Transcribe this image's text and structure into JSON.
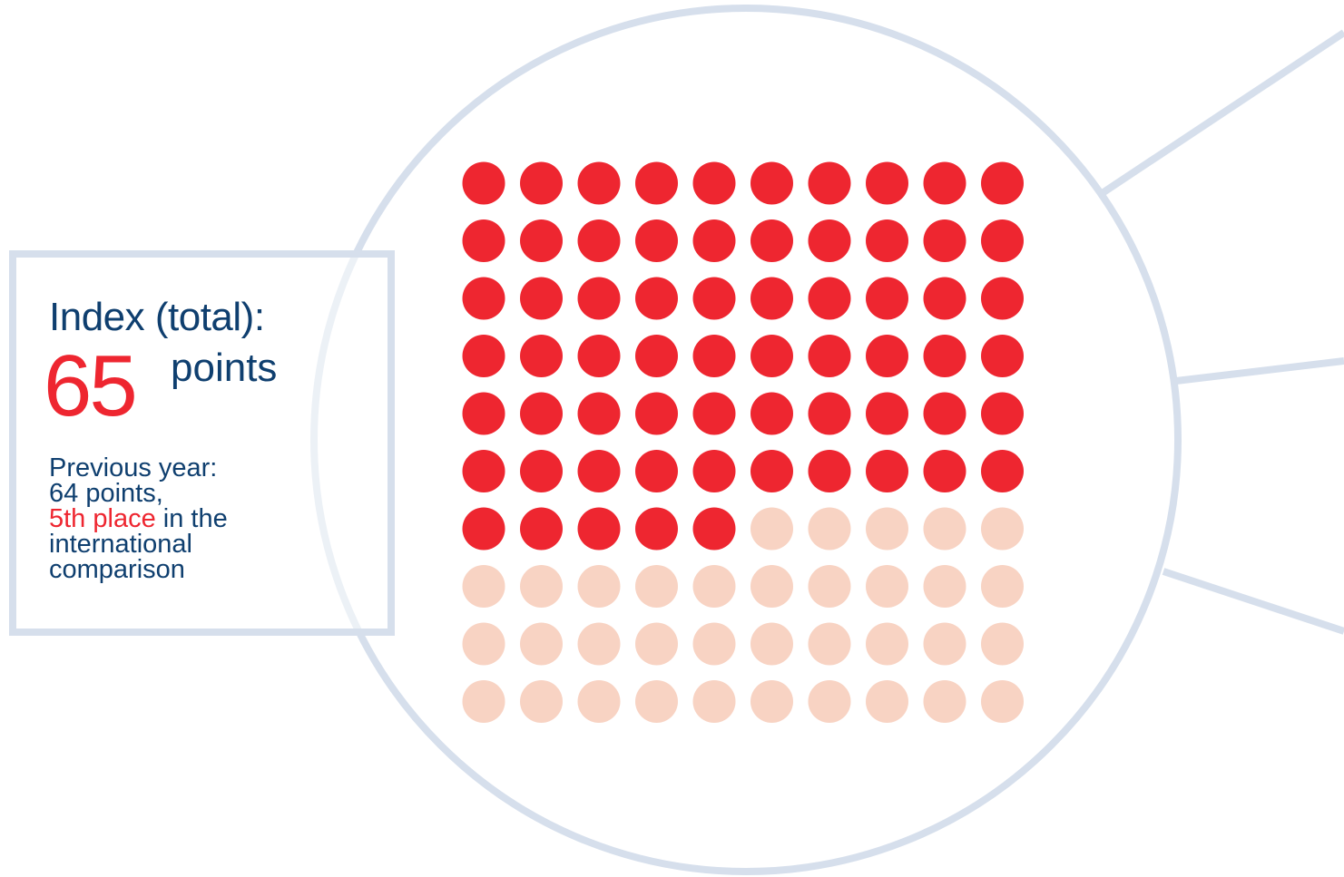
{
  "colors": {
    "filled": "#ee2630",
    "empty": "#f8d3c3",
    "navy": "#0f3f6f",
    "frame": "#d6dfec"
  },
  "info_box": {
    "title": "Index (total):",
    "value": "65",
    "unit": "points",
    "prev_line1": "Previous year:",
    "prev_line2": "64 points,",
    "rank": "5th place",
    "rank_suffix": " in the",
    "line4": "international",
    "line5": "comparison"
  },
  "chart_data": {
    "type": "dot-matrix",
    "title": "Index (total):",
    "value": 65,
    "total": 100,
    "unit": "points",
    "rows": 10,
    "columns": 10,
    "previous_year": {
      "value": 64,
      "rank": "5th place"
    }
  }
}
